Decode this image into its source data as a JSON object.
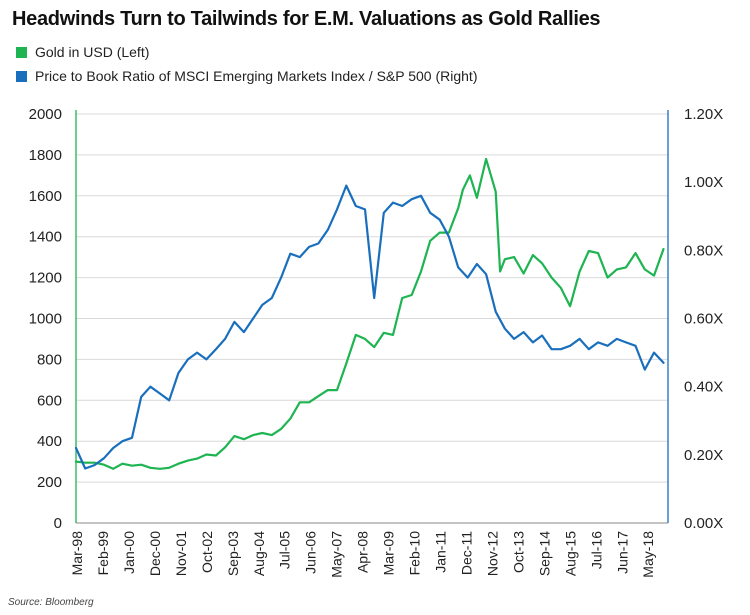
{
  "chart_data": {
    "type": "line",
    "title": "Headwinds Turn to Tailwinds for E.M. Valuations as Gold Rallies",
    "source": "Source: Bloomberg",
    "x_tick_labels": [
      "Mar-98",
      "Feb-99",
      "Jan-00",
      "Dec-00",
      "Nov-01",
      "Oct-02",
      "Sep-03",
      "Aug-04",
      "Jul-05",
      "Jun-06",
      "May-07",
      "Apr-08",
      "Mar-09",
      "Feb-10",
      "Jan-11",
      "Dec-11",
      "Nov-12",
      "Oct-13",
      "Sep-14",
      "Aug-15",
      "Jul-16",
      "Jun-17",
      "May-18"
    ],
    "y_left": {
      "ylim": [
        0,
        2000
      ],
      "ticks": [
        "0",
        "200",
        "400",
        "600",
        "800",
        "1000",
        "1200",
        "1400",
        "1600",
        "1800",
        "2000"
      ]
    },
    "y_right": {
      "ylim": [
        0,
        1.2
      ],
      "ticks": [
        "0.00X",
        "0.20X",
        "0.40X",
        "0.60X",
        "0.80X",
        "1.00X",
        "1.20X"
      ]
    },
    "grid": "horizontal",
    "legend_position": "top-left",
    "series": [
      {
        "name": "Gold in USD (Left)",
        "axis": "left",
        "color": "#1eb451",
        "x": [
          1998.17,
          1998.5,
          1998.83,
          1999.17,
          1999.5,
          1999.83,
          2000.17,
          2000.5,
          2000.83,
          2001.17,
          2001.5,
          2001.83,
          2002.17,
          2002.5,
          2002.83,
          2003.17,
          2003.5,
          2003.83,
          2004.17,
          2004.5,
          2004.83,
          2005.17,
          2005.5,
          2005.83,
          2006.17,
          2006.5,
          2006.83,
          2007.17,
          2007.5,
          2007.83,
          2008.17,
          2008.5,
          2008.83,
          2009.17,
          2009.5,
          2009.83,
          2010.17,
          2010.5,
          2010.83,
          2011.17,
          2011.5,
          2011.83,
          2012.0,
          2012.25,
          2012.5,
          2012.83,
          2013.17,
          2013.33,
          2013.5,
          2013.83,
          2014.17,
          2014.5,
          2014.83,
          2015.17,
          2015.5,
          2015.83,
          2016.17,
          2016.5,
          2016.83,
          2017.17,
          2017.5,
          2017.83,
          2018.17,
          2018.5,
          2018.83,
          2019.17
        ],
        "values": [
          300,
          295,
          295,
          285,
          265,
          290,
          280,
          285,
          270,
          265,
          270,
          290,
          305,
          315,
          335,
          330,
          370,
          425,
          410,
          430,
          440,
          430,
          460,
          510,
          590,
          590,
          620,
          650,
          650,
          780,
          920,
          900,
          860,
          930,
          920,
          1100,
          1115,
          1230,
          1380,
          1420,
          1420,
          1540,
          1630,
          1700,
          1590,
          1780,
          1620,
          1230,
          1290,
          1300,
          1220,
          1310,
          1270,
          1200,
          1150,
          1060,
          1230,
          1330,
          1320,
          1200,
          1240,
          1250,
          1320,
          1240,
          1210,
          1340
        ]
      },
      {
        "name": "Price to Book Ratio of MSCI Emerging Markets Index / S&P 500 (Right)",
        "axis": "right",
        "color": "#1a6fbd",
        "x": [
          1998.17,
          1998.5,
          1998.83,
          1999.17,
          1999.5,
          1999.83,
          2000.17,
          2000.5,
          2000.83,
          2001.17,
          2001.5,
          2001.83,
          2002.17,
          2002.5,
          2002.83,
          2003.17,
          2003.5,
          2003.83,
          2004.17,
          2004.5,
          2004.83,
          2005.17,
          2005.5,
          2005.83,
          2006.17,
          2006.5,
          2006.83,
          2007.17,
          2007.5,
          2007.83,
          2008.17,
          2008.5,
          2008.83,
          2009.17,
          2009.5,
          2009.83,
          2010.17,
          2010.5,
          2010.83,
          2011.17,
          2011.5,
          2011.83,
          2012.17,
          2012.5,
          2012.83,
          2013.17,
          2013.5,
          2013.83,
          2014.17,
          2014.5,
          2014.83,
          2015.17,
          2015.5,
          2015.83,
          2016.17,
          2016.5,
          2016.83,
          2017.17,
          2017.5,
          2017.83,
          2018.17,
          2018.5,
          2018.83,
          2019.17
        ],
        "values": [
          0.22,
          0.16,
          0.17,
          0.19,
          0.22,
          0.24,
          0.25,
          0.37,
          0.4,
          0.38,
          0.36,
          0.44,
          0.48,
          0.5,
          0.48,
          0.51,
          0.54,
          0.59,
          0.56,
          0.6,
          0.64,
          0.66,
          0.72,
          0.79,
          0.78,
          0.81,
          0.82,
          0.86,
          0.92,
          0.99,
          0.93,
          0.92,
          0.66,
          0.91,
          0.94,
          0.93,
          0.95,
          0.96,
          0.91,
          0.89,
          0.84,
          0.75,
          0.72,
          0.76,
          0.73,
          0.62,
          0.57,
          0.54,
          0.56,
          0.53,
          0.55,
          0.51,
          0.51,
          0.52,
          0.54,
          0.51,
          0.53,
          0.52,
          0.54,
          0.53,
          0.52,
          0.45,
          0.5,
          0.47
        ]
      }
    ]
  }
}
